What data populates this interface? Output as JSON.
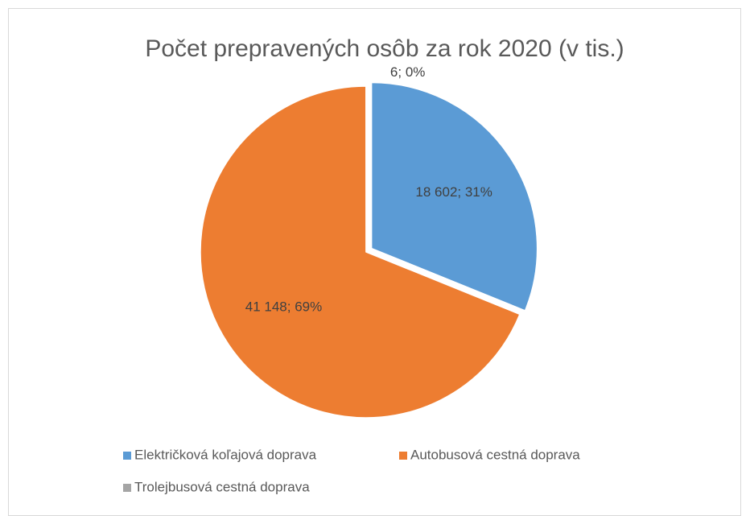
{
  "chart_data": {
    "type": "pie",
    "title": "Počet prepravených osôb za rok 2020 (v tis.)",
    "categories": [
      "Električková koľajová doprava",
      "Autobusová cestná doprava",
      "Trolejbusová cestná doprava"
    ],
    "values": [
      18602,
      41148,
      6
    ],
    "value_labels": [
      "18 602; 31%",
      "41 148; 69%",
      "6; 0%"
    ],
    "colors": [
      "#5b9bd5",
      "#ed7d31",
      "#a5a5a5"
    ],
    "legend": "bottom"
  }
}
